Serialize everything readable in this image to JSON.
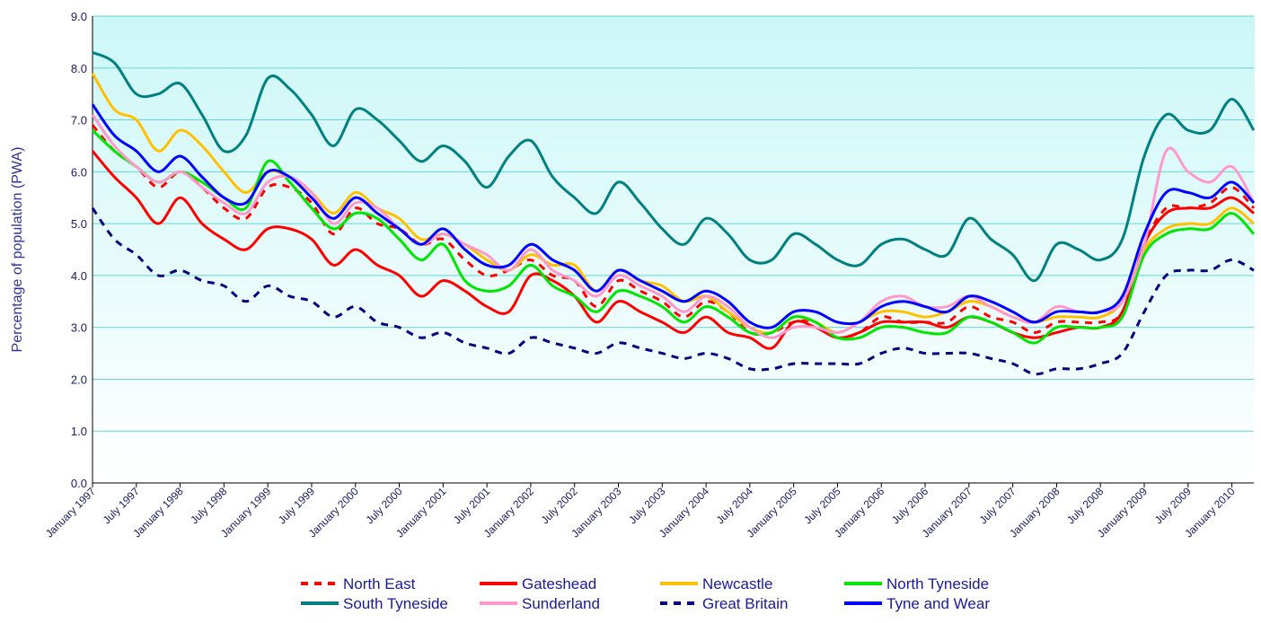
{
  "chart_data": {
    "type": "line",
    "y_label": "Percentage of population (PWA)",
    "categories": [
      "January 1997",
      null,
      "July 1997",
      null,
      "January 1998",
      null,
      "July 1998",
      null,
      "January 1999",
      null,
      "July 1999",
      null,
      "January 2000",
      null,
      "July 2000",
      null,
      "January 2001",
      null,
      "July 2001",
      null,
      "January 2002",
      null,
      "July 2002",
      null,
      "January 2003",
      null,
      "July 2003",
      null,
      "January 2004",
      null,
      "July 2004",
      null,
      "January 2005",
      null,
      "July 2005",
      null,
      "January 2006",
      null,
      "July 2006",
      null,
      "January 2007",
      null,
      "July 2007",
      null,
      "January 2008",
      null,
      "July 2008",
      null,
      "January 2009",
      null,
      "July 2009",
      null,
      "January 2010",
      null
    ],
    "ylim": [
      0,
      9
    ],
    "yticks": [
      {
        "value": 0,
        "label": "0.0"
      },
      {
        "value": 1,
        "label": "1.0"
      },
      {
        "value": 2,
        "label": "2.0"
      },
      {
        "value": 3,
        "label": "3.0"
      },
      {
        "value": 4,
        "label": "4.0"
      },
      {
        "value": 5,
        "label": "5.0"
      },
      {
        "value": 6,
        "label": "6.0"
      },
      {
        "value": 7,
        "label": "7.0"
      },
      {
        "value": 8,
        "label": "8.0"
      },
      {
        "value": 9,
        "label": "9.0"
      }
    ],
    "grid": true,
    "legend_position": "bottom",
    "series": [
      {
        "name": "North East",
        "color": "#ff0000",
        "dashed": true,
        "values": [
          6.9,
          6.4,
          6.1,
          5.7,
          6.0,
          5.7,
          5.3,
          5.1,
          5.7,
          5.7,
          5.4,
          4.8,
          5.3,
          5.0,
          4.9,
          4.6,
          4.7,
          4.3,
          4.0,
          4.1,
          4.3,
          4.0,
          3.9,
          3.4,
          3.9,
          3.7,
          3.5,
          3.2,
          3.5,
          3.3,
          2.9,
          2.9,
          3.1,
          3.1,
          2.8,
          2.9,
          3.2,
          3.1,
          3.1,
          3.1,
          3.4,
          3.2,
          3.1,
          2.9,
          3.1,
          3.1,
          3.1,
          3.3,
          4.6,
          5.3,
          5.3,
          5.4,
          5.7,
          5.3
        ]
      },
      {
        "name": "Gateshead",
        "color": "#ff0000",
        "dashed": false,
        "values": [
          6.4,
          5.9,
          5.5,
          5.0,
          5.5,
          5.0,
          4.7,
          4.5,
          4.9,
          4.9,
          4.7,
          4.2,
          4.5,
          4.2,
          4.0,
          3.6,
          3.9,
          3.7,
          3.4,
          3.3,
          4.0,
          3.9,
          3.6,
          3.1,
          3.5,
          3.3,
          3.1,
          2.9,
          3.2,
          2.9,
          2.8,
          2.6,
          3.1,
          3.0,
          2.8,
          2.9,
          3.1,
          3.1,
          3.1,
          3.0,
          3.2,
          3.1,
          2.9,
          2.8,
          2.9,
          3.0,
          3.0,
          3.3,
          4.6,
          5.2,
          5.3,
          5.3,
          5.5,
          5.2
        ]
      },
      {
        "name": "Newcastle",
        "color": "#ffc000",
        "dashed": false,
        "values": [
          7.9,
          7.2,
          7.0,
          6.4,
          6.8,
          6.5,
          6.0,
          5.6,
          6.0,
          5.9,
          5.6,
          5.2,
          5.6,
          5.3,
          5.1,
          4.7,
          4.8,
          4.6,
          4.3,
          4.1,
          4.4,
          4.2,
          4.2,
          3.7,
          4.1,
          3.9,
          3.8,
          3.5,
          3.6,
          3.3,
          3.0,
          2.9,
          3.2,
          3.1,
          2.9,
          3.1,
          3.3,
          3.3,
          3.2,
          3.3,
          3.5,
          3.4,
          3.2,
          3.1,
          3.2,
          3.2,
          3.2,
          3.5,
          4.5,
          4.9,
          5.0,
          5.0,
          5.3,
          5.0
        ]
      },
      {
        "name": "North Tyneside",
        "color": "#00e600",
        "dashed": false,
        "values": [
          6.8,
          6.4,
          6.1,
          5.8,
          6.0,
          5.8,
          5.5,
          5.3,
          6.2,
          5.8,
          5.3,
          4.9,
          5.2,
          5.1,
          4.7,
          4.3,
          4.6,
          3.9,
          3.7,
          3.8,
          4.2,
          3.8,
          3.6,
          3.3,
          3.7,
          3.6,
          3.4,
          3.1,
          3.4,
          3.2,
          2.9,
          2.9,
          3.2,
          3.1,
          2.8,
          2.8,
          3.0,
          3.0,
          2.9,
          2.9,
          3.2,
          3.1,
          2.9,
          2.7,
          3.0,
          3.0,
          3.0,
          3.2,
          4.4,
          4.8,
          4.9,
          4.9,
          5.2,
          4.8
        ]
      },
      {
        "name": "South Tyneside",
        "color": "#008080",
        "dashed": false,
        "values": [
          8.3,
          8.1,
          7.5,
          7.5,
          7.7,
          7.1,
          6.4,
          6.7,
          7.8,
          7.6,
          7.1,
          6.5,
          7.2,
          7.0,
          6.6,
          6.2,
          6.5,
          6.2,
          5.7,
          6.3,
          6.6,
          5.9,
          5.5,
          5.2,
          5.8,
          5.4,
          4.9,
          4.6,
          5.1,
          4.8,
          4.3,
          4.3,
          4.8,
          4.6,
          4.3,
          4.2,
          4.6,
          4.7,
          4.5,
          4.4,
          5.1,
          4.7,
          4.4,
          3.9,
          4.6,
          4.5,
          4.3,
          4.7,
          6.3,
          7.1,
          6.8,
          6.8,
          7.4,
          6.8
        ]
      },
      {
        "name": "Sunderland",
        "color": "#ff99cc",
        "dashed": false,
        "values": [
          7.1,
          6.5,
          6.1,
          5.8,
          6.0,
          5.7,
          5.4,
          5.2,
          5.8,
          5.9,
          5.6,
          5.0,
          5.4,
          5.3,
          4.9,
          4.6,
          4.8,
          4.6,
          4.4,
          4.1,
          4.5,
          4.1,
          3.9,
          3.6,
          4.0,
          3.8,
          3.6,
          3.3,
          3.6,
          3.4,
          3.0,
          2.8,
          3.0,
          3.0,
          2.9,
          3.1,
          3.5,
          3.6,
          3.4,
          3.4,
          3.6,
          3.4,
          3.2,
          3.1,
          3.4,
          3.3,
          3.3,
          3.5,
          4.6,
          6.4,
          6.0,
          5.8,
          6.1,
          5.4
        ]
      },
      {
        "name": "Great Britain",
        "color": "#000080",
        "dashed": true,
        "values": [
          5.3,
          4.7,
          4.4,
          4.0,
          4.1,
          3.9,
          3.8,
          3.5,
          3.8,
          3.6,
          3.5,
          3.2,
          3.4,
          3.1,
          3.0,
          2.8,
          2.9,
          2.7,
          2.6,
          2.5,
          2.8,
          2.7,
          2.6,
          2.5,
          2.7,
          2.6,
          2.5,
          2.4,
          2.5,
          2.4,
          2.2,
          2.2,
          2.3,
          2.3,
          2.3,
          2.3,
          2.5,
          2.6,
          2.5,
          2.5,
          2.5,
          2.4,
          2.3,
          2.1,
          2.2,
          2.2,
          2.3,
          2.5,
          3.3,
          4.0,
          4.1,
          4.1,
          4.3,
          4.1
        ]
      },
      {
        "name": "Tyne and Wear",
        "color": "#0000ff",
        "dashed": false,
        "values": [
          7.3,
          6.7,
          6.4,
          6.0,
          6.3,
          5.9,
          5.5,
          5.4,
          6.0,
          5.9,
          5.5,
          5.1,
          5.5,
          5.2,
          4.9,
          4.6,
          4.9,
          4.5,
          4.2,
          4.2,
          4.6,
          4.3,
          4.1,
          3.7,
          4.1,
          3.9,
          3.7,
          3.5,
          3.7,
          3.5,
          3.1,
          3.0,
          3.3,
          3.3,
          3.1,
          3.1,
          3.4,
          3.5,
          3.4,
          3.3,
          3.6,
          3.5,
          3.3,
          3.1,
          3.3,
          3.3,
          3.3,
          3.6,
          4.8,
          5.6,
          5.6,
          5.5,
          5.8,
          5.4
        ]
      }
    ]
  }
}
